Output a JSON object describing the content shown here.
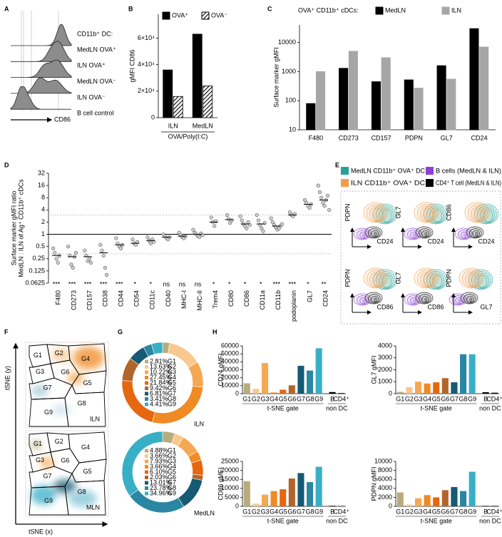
{
  "chart_data": [
    {
      "type": "histogram-overlay",
      "panel": "A",
      "title": "CD11b⁺ DC:",
      "labels": [
        "MedLN OVA⁺",
        "ILN OVA⁺",
        "MedLN OVA⁻",
        "ILN OVA⁻",
        "B cell control"
      ],
      "xlabel": "CD86"
    },
    {
      "type": "bar",
      "panel": "B",
      "ylabel": "gMFI CD86",
      "xlabel": "OVA/Poly(I:C)",
      "legend": "top",
      "categories": [
        "ILN",
        "MedLN"
      ],
      "series": [
        {
          "name": "OVA⁺",
          "color": "#000000",
          "pattern": "solid",
          "values": [
            36000,
            63000
          ]
        },
        {
          "name": "OVA⁻",
          "color": "#000000",
          "pattern": "hatch",
          "values": [
            16000,
            24000
          ]
        }
      ],
      "ylim": [
        0,
        78000
      ],
      "yticks": [
        0,
        {
          "value": 20000,
          "label": "2×10⁴"
        },
        {
          "value": 40000,
          "label": "4×10⁴"
        },
        {
          "value": 60000,
          "label": "6×10⁴"
        }
      ]
    },
    {
      "type": "bar",
      "panel": "C",
      "title": "OVA⁺ CD11b⁺ cDCs:",
      "ylabel": "Surface marker gMFI",
      "legend": "top",
      "log": true,
      "categories": [
        "F480",
        "CD273",
        "CD157",
        "PDPN",
        "GL7",
        "CD24"
      ],
      "series": [
        {
          "name": "MedLN",
          "color": "#000000",
          "pattern": "solid",
          "values": [
            80,
            1300,
            450,
            520,
            1600,
            30000
          ]
        },
        {
          "name": "ILN",
          "color": "#a6a6a6",
          "pattern": "solid",
          "values": [
            1000,
            5000,
            3000,
            270,
            550,
            7000
          ]
        }
      ],
      "ylim": [
        10,
        40000
      ],
      "yticks": [
        10,
        100,
        1000,
        10000
      ]
    },
    {
      "type": "dot",
      "panel": "D",
      "ylabel": "Surface marker gMFI ratio",
      "ylabel2": "MedLN : ILN of Ag⁺ CD11b⁺ cDCs",
      "log": true,
      "categories": [
        "F480",
        "CD273",
        "CD157",
        "CD38",
        "CD44",
        "CD54",
        "CD11c",
        "CD40",
        "MHC-I",
        "MHC-II",
        "Trem4",
        "CD80",
        "CD86",
        "CD11a",
        "CD11b",
        "podoplanin",
        "GL7",
        "CD24"
      ],
      "values": [
        0.3,
        0.28,
        0.28,
        0.35,
        0.55,
        0.6,
        0.7,
        0.85,
        0.9,
        1.0,
        2.0,
        2.3,
        1.8,
        1.8,
        1.6,
        3.0,
        5.5,
        7
      ],
      "points": [
        [
          0.45,
          0.35,
          0.25,
          0.2,
          0.3
        ],
        [
          0.5,
          0.3,
          0.18,
          0.15,
          0.28,
          0.35
        ],
        [
          0.4,
          0.3,
          0.22,
          0.25,
          0.2
        ],
        [
          0.55,
          0.4,
          0.3,
          0.15,
          0.1
        ],
        [
          0.8,
          0.6,
          0.5,
          0.45,
          0.55
        ],
        [
          0.75,
          0.6,
          0.55,
          0.65
        ],
        [
          0.85,
          0.7,
          0.6,
          0.75,
          0.65
        ],
        [
          1.0,
          0.9,
          0.8,
          0.75,
          0.85
        ],
        [
          1.1,
          0.95,
          0.85,
          0.8,
          0.9
        ],
        [
          1.3,
          1.1,
          1.0,
          0.9,
          0.85,
          1.05,
          0.95
        ],
        [
          2.6,
          2.0,
          1.6,
          2.1
        ],
        [
          3.0,
          2.4,
          1.9,
          2.2
        ],
        [
          2.8,
          2.2,
          1.8,
          1.6,
          1.4,
          2.0,
          1.7
        ],
        [
          3.0,
          2.2,
          1.7,
          1.4,
          1.2,
          1.9
        ],
        [
          2.5,
          2.0,
          1.7,
          1.5,
          1.3,
          1.4,
          1.6,
          1.8
        ],
        [
          3.5,
          3.0,
          2.8,
          3.2
        ],
        [
          7,
          6,
          5,
          4.5,
          5.5
        ],
        [
          16,
          11,
          8,
          6,
          5,
          7,
          9,
          4
        ]
      ],
      "significance": [
        "***",
        "***",
        "***",
        "***",
        "***",
        "*",
        "*",
        "ns",
        "ns",
        "ns",
        "*",
        "*",
        "*",
        "*",
        "***",
        "***",
        "*",
        "**"
      ],
      "hlines": [
        {
          "value": 1,
          "style": "solid"
        },
        {
          "value": 3,
          "style": "dashed"
        },
        {
          "value": 0.33,
          "style": "dashed"
        }
      ],
      "ylim": [
        0.0625,
        32
      ],
      "yticks": [
        0.0625,
        0.125,
        0.25,
        0.5,
        1,
        2,
        4,
        8,
        16,
        32
      ]
    },
    {
      "type": "contour",
      "panel": "E",
      "legend": [
        {
          "name": "MedLN CD11b⁺ OVA⁺ DC",
          "color": "#2aa198"
        },
        {
          "name": "ILN CD11b⁺ OVA⁺ DC",
          "color": "#f39c4a"
        },
        {
          "name": "B cells (MedLN & ILN)",
          "color": "#8e3fd6"
        },
        {
          "name": "CD4⁺ T cell (MedLN & ILN)",
          "color": "#000000"
        }
      ],
      "plots": [
        {
          "y": "PDPN",
          "x": "CD24"
        },
        {
          "y": "GL7",
          "x": "CD24"
        },
        {
          "y": "CD86",
          "x": "CD24"
        },
        {
          "y": "PDPN",
          "x": "CD86"
        },
        {
          "y": "GL7",
          "x": "CD86"
        },
        {
          "y": "PDPN",
          "x": "GL7"
        }
      ]
    },
    {
      "type": "tsne",
      "panel": "F",
      "ylabel": "tSNE (y)",
      "xlabel": "tSNE (x)",
      "gates": [
        "G1",
        "G2",
        "G3",
        "G4",
        "G5",
        "G6",
        "G7",
        "G8",
        "G9"
      ],
      "maps": [
        "ILN",
        "MLN"
      ]
    },
    {
      "type": "donut",
      "panel": "G",
      "categories": [
        "G1",
        "G2",
        "G3",
        "G4",
        "G5",
        "G6",
        "G7",
        "G8",
        "G9"
      ],
      "colors": [
        "#b8ab7c",
        "#f8c891",
        "#f5a852",
        "#f08a24",
        "#e5670f",
        "#b2652a",
        "#165a73",
        "#2a87a3",
        "#39afc6"
      ],
      "donuts": [
        {
          "name": "ILN",
          "values": [
            2.81,
            13.63,
            10.22,
            27.45,
            21.84,
            9.42,
            6.81,
            3.41,
            4.41
          ],
          "value_labels": [
            "2.81%",
            "13.63%",
            "10.22%",
            "27.45%",
            "21.84%",
            "9.42%",
            "6.81%",
            "3.41%",
            "4.41%"
          ]
        },
        {
          "name": "MedLN",
          "values": [
            4.88,
            3.66,
            7.93,
            3.66,
            6.1,
            2.03,
            13.01,
            23.78,
            34.96
          ],
          "value_labels": [
            "4.88%",
            "3.66%",
            "7.93%",
            "3.66%",
            "6.10%",
            "2.03%",
            "13.01%",
            "23.78%",
            "34.96%"
          ]
        }
      ]
    },
    {
      "type": "bar-grid",
      "panel": "H",
      "categories": [
        "G1",
        "G2",
        "G3",
        "G4",
        "G5",
        "G6",
        "G7",
        "G8",
        "G9",
        "B",
        "CD4⁺"
      ],
      "colors": [
        "#b8ab7c",
        "#f8c891",
        "#f5a852",
        "#f08a24",
        "#e5670f",
        "#b2652a",
        "#165a73",
        "#2a87a3",
        "#39afc6",
        "#000000",
        "#000000"
      ],
      "group_labels": [
        "t-SNE gate",
        "non DC"
      ],
      "charts": [
        {
          "ylabel": "CD24 gMFI",
          "ylim": [
            0,
            60000
          ],
          "yticks": [
            0,
            10000,
            20000,
            30000,
            40000,
            50000,
            60000
          ],
          "values": [
            13000,
            6000,
            38500,
            1500,
            5000,
            10500,
            35000,
            29000,
            57000,
            2000,
            700
          ]
        },
        {
          "ylabel": "GL7 gMFI",
          "ylim": [
            0,
            4000
          ],
          "yticks": [
            0,
            1000,
            2000,
            3000,
            4000
          ],
          "values": [
            150,
            550,
            1000,
            850,
            950,
            1300,
            950,
            3300,
            3300,
            120,
            80
          ]
        },
        {
          "ylabel": "CD86 gMFI",
          "ylim": [
            0,
            25000
          ],
          "yticks": [
            0,
            5000,
            10000,
            15000,
            20000,
            25000
          ],
          "values": [
            14000,
            1500,
            6500,
            8500,
            9500,
            15500,
            18500,
            13500,
            22000,
            300,
            200
          ]
        },
        {
          "ylabel": "PDPN gMFI",
          "ylim": [
            0,
            10000
          ],
          "yticks": [
            0,
            2000,
            4000,
            6000,
            8000,
            10000
          ],
          "values": [
            3100,
            400,
            1800,
            2500,
            2000,
            3600,
            4300,
            3400,
            7700,
            100,
            100
          ]
        }
      ]
    }
  ]
}
